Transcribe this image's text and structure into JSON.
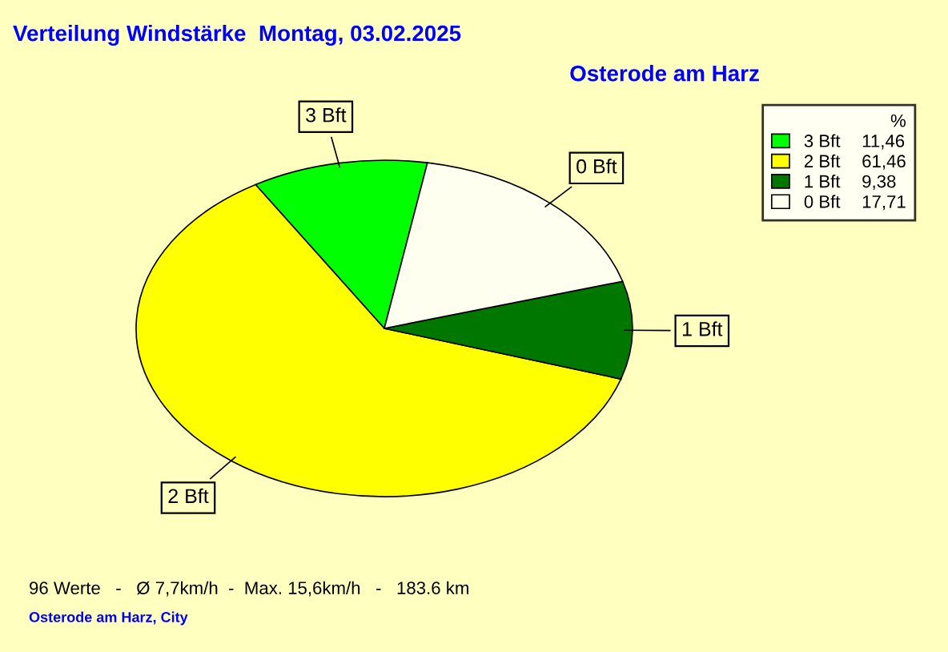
{
  "chart_data": {
    "type": "pie",
    "title": "Verteilung Windstärke  Montag, 03.02.2025",
    "subtitle": "Osterode am Harz",
    "categories": [
      "3 Bft",
      "2 Bft",
      "1 Bft",
      "0 Bft"
    ],
    "values": [
      11.46,
      61.46,
      9.38,
      17.71
    ],
    "value_labels": [
      "11,46",
      "61,46",
      "9,38",
      "17,71"
    ],
    "colors": [
      "#00ff00",
      "#ffff00",
      "#007800",
      "#fffff0"
    ],
    "legend": "top right",
    "legend_title": "%",
    "annotations": [
      "96 Werte   -   Ø 7,7km/h  -  Max. 15,6km/h   -   183.6 km",
      "Osterode am Harz, City"
    ]
  }
}
